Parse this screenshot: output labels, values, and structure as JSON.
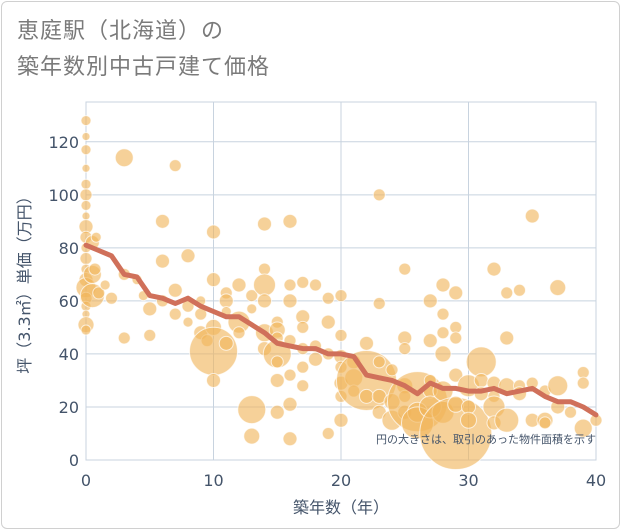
{
  "title": {
    "line1": "恵庭駅（北海道）の",
    "line2": "築年数別中古戸建て価格"
  },
  "chart_data": {
    "type": "scatter",
    "xlabel": "築年数（年）",
    "ylabel": "坪（3.3㎡）単価（万円）",
    "xlim": [
      0,
      40
    ],
    "ylim": [
      0,
      135
    ],
    "xticks": [
      0,
      10,
      20,
      30,
      40
    ],
    "yticks": [
      0,
      20,
      40,
      60,
      80,
      100,
      120
    ],
    "grid": true,
    "note": "円の大きさは、取引のあった物件面積を示す",
    "colors": {
      "bubble": "#f0b45a",
      "line": "#d0705a",
      "grid": "#c8d3df",
      "text": "#44546a"
    },
    "points": [
      {
        "x": 0,
        "y": 128,
        "s": 5
      },
      {
        "x": 0,
        "y": 122,
        "s": 4
      },
      {
        "x": 0,
        "y": 117,
        "s": 5
      },
      {
        "x": 0,
        "y": 110,
        "s": 4
      },
      {
        "x": 0,
        "y": 104,
        "s": 5
      },
      {
        "x": 0,
        "y": 100,
        "s": 6
      },
      {
        "x": 0,
        "y": 96,
        "s": 5
      },
      {
        "x": 0,
        "y": 92,
        "s": 4
      },
      {
        "x": 0,
        "y": 88,
        "s": 7
      },
      {
        "x": 0,
        "y": 84,
        "s": 6
      },
      {
        "x": 0,
        "y": 80,
        "s": 5
      },
      {
        "x": 0,
        "y": 76,
        "s": 6
      },
      {
        "x": 0,
        "y": 72,
        "s": 5
      },
      {
        "x": 0,
        "y": 68,
        "s": 7
      },
      {
        "x": 0,
        "y": 65,
        "s": 10
      },
      {
        "x": 0,
        "y": 61,
        "s": 6
      },
      {
        "x": 0,
        "y": 58,
        "s": 5
      },
      {
        "x": 0,
        "y": 55,
        "s": 4
      },
      {
        "x": 0,
        "y": 51,
        "s": 8
      },
      {
        "x": 0,
        "y": 49,
        "s": 5
      },
      {
        "x": 0.5,
        "y": 82,
        "s": 7
      },
      {
        "x": 0.5,
        "y": 70,
        "s": 9
      },
      {
        "x": 0.5,
        "y": 62,
        "s": 12
      },
      {
        "x": 0.7,
        "y": 72,
        "s": 6
      },
      {
        "x": 0.8,
        "y": 84,
        "s": 5
      },
      {
        "x": 1,
        "y": 63,
        "s": 6
      },
      {
        "x": 1.5,
        "y": 66,
        "s": 5
      },
      {
        "x": 2,
        "y": 61,
        "s": 6
      },
      {
        "x": 3,
        "y": 114,
        "s": 9
      },
      {
        "x": 3,
        "y": 70,
        "s": 6
      },
      {
        "x": 3,
        "y": 46,
        "s": 6
      },
      {
        "x": 4,
        "y": 68,
        "s": 5
      },
      {
        "x": 4.5,
        "y": 62,
        "s": 5
      },
      {
        "x": 5,
        "y": 57,
        "s": 7
      },
      {
        "x": 5,
        "y": 47,
        "s": 6
      },
      {
        "x": 6,
        "y": 90,
        "s": 7
      },
      {
        "x": 6,
        "y": 75,
        "s": 7
      },
      {
        "x": 6,
        "y": 60,
        "s": 6
      },
      {
        "x": 7,
        "y": 111,
        "s": 6
      },
      {
        "x": 7,
        "y": 64,
        "s": 7
      },
      {
        "x": 7,
        "y": 55,
        "s": 6
      },
      {
        "x": 8,
        "y": 77,
        "s": 7
      },
      {
        "x": 8,
        "y": 58,
        "s": 6
      },
      {
        "x": 8,
        "y": 52,
        "s": 5
      },
      {
        "x": 9,
        "y": 60,
        "s": 5
      },
      {
        "x": 9,
        "y": 55,
        "s": 6
      },
      {
        "x": 9,
        "y": 48,
        "s": 7
      },
      {
        "x": 9.5,
        "y": 45,
        "s": 6
      },
      {
        "x": 10,
        "y": 86,
        "s": 7
      },
      {
        "x": 10,
        "y": 68,
        "s": 7
      },
      {
        "x": 10,
        "y": 50,
        "s": 8
      },
      {
        "x": 10,
        "y": 41,
        "s": 24
      },
      {
        "x": 10,
        "y": 30,
        "s": 7
      },
      {
        "x": 11,
        "y": 63,
        "s": 6
      },
      {
        "x": 11,
        "y": 60,
        "s": 7
      },
      {
        "x": 11,
        "y": 56,
        "s": 5
      },
      {
        "x": 11,
        "y": 44,
        "s": 7
      },
      {
        "x": 12,
        "y": 66,
        "s": 7
      },
      {
        "x": 12,
        "y": 52,
        "s": 11
      },
      {
        "x": 12,
        "y": 48,
        "s": 6
      },
      {
        "x": 13,
        "y": 62,
        "s": 6
      },
      {
        "x": 13,
        "y": 57,
        "s": 5
      },
      {
        "x": 13,
        "y": 19,
        "s": 14
      },
      {
        "x": 13,
        "y": 9,
        "s": 8
      },
      {
        "x": 14,
        "y": 89,
        "s": 7
      },
      {
        "x": 14,
        "y": 72,
        "s": 6
      },
      {
        "x": 14,
        "y": 66,
        "s": 11
      },
      {
        "x": 14,
        "y": 60,
        "s": 7
      },
      {
        "x": 14,
        "y": 48,
        "s": 9
      },
      {
        "x": 14,
        "y": 42,
        "s": 7
      },
      {
        "x": 15,
        "y": 52,
        "s": 6
      },
      {
        "x": 15,
        "y": 49,
        "s": 8
      },
      {
        "x": 15,
        "y": 46,
        "s": 6
      },
      {
        "x": 15,
        "y": 40,
        "s": 14
      },
      {
        "x": 15,
        "y": 37,
        "s": 6
      },
      {
        "x": 15,
        "y": 30,
        "s": 7
      },
      {
        "x": 15,
        "y": 18,
        "s": 7
      },
      {
        "x": 16,
        "y": 90,
        "s": 7
      },
      {
        "x": 16,
        "y": 66,
        "s": 6
      },
      {
        "x": 16,
        "y": 60,
        "s": 7
      },
      {
        "x": 16,
        "y": 45,
        "s": 6
      },
      {
        "x": 16,
        "y": 32,
        "s": 6
      },
      {
        "x": 16,
        "y": 21,
        "s": 7
      },
      {
        "x": 16,
        "y": 8,
        "s": 7
      },
      {
        "x": 17,
        "y": 67,
        "s": 6
      },
      {
        "x": 17,
        "y": 54,
        "s": 7
      },
      {
        "x": 17,
        "y": 50,
        "s": 6
      },
      {
        "x": 17,
        "y": 42,
        "s": 6
      },
      {
        "x": 17,
        "y": 35,
        "s": 6
      },
      {
        "x": 17,
        "y": 28,
        "s": 6
      },
      {
        "x": 18,
        "y": 66,
        "s": 6
      },
      {
        "x": 18,
        "y": 43,
        "s": 6
      },
      {
        "x": 18,
        "y": 38,
        "s": 7
      },
      {
        "x": 19,
        "y": 61,
        "s": 6
      },
      {
        "x": 19,
        "y": 52,
        "s": 7
      },
      {
        "x": 19,
        "y": 40,
        "s": 6
      },
      {
        "x": 19,
        "y": 10,
        "s": 6
      },
      {
        "x": 20,
        "y": 62,
        "s": 6
      },
      {
        "x": 20,
        "y": 47,
        "s": 6
      },
      {
        "x": 20,
        "y": 39,
        "s": 7
      },
      {
        "x": 20,
        "y": 35,
        "s": 6
      },
      {
        "x": 20,
        "y": 29,
        "s": 7
      },
      {
        "x": 20,
        "y": 24,
        "s": 6
      },
      {
        "x": 20,
        "y": 15,
        "s": 7
      },
      {
        "x": 21,
        "y": 37,
        "s": 7
      },
      {
        "x": 21,
        "y": 31,
        "s": 9
      },
      {
        "x": 21,
        "y": 26,
        "s": 6
      },
      {
        "x": 22,
        "y": 44,
        "s": 7
      },
      {
        "x": 22,
        "y": 30,
        "s": 30
      },
      {
        "x": 22,
        "y": 24,
        "s": 7
      },
      {
        "x": 23,
        "y": 100,
        "s": 6
      },
      {
        "x": 23,
        "y": 59,
        "s": 6
      },
      {
        "x": 23,
        "y": 37,
        "s": 6
      },
      {
        "x": 23,
        "y": 24,
        "s": 7
      },
      {
        "x": 23,
        "y": 18,
        "s": 7
      },
      {
        "x": 24,
        "y": 34,
        "s": 6
      },
      {
        "x": 24,
        "y": 22,
        "s": 8
      },
      {
        "x": 24,
        "y": 15,
        "s": 10
      },
      {
        "x": 25,
        "y": 72,
        "s": 6
      },
      {
        "x": 25,
        "y": 46,
        "s": 7
      },
      {
        "x": 25,
        "y": 42,
        "s": 6
      },
      {
        "x": 25,
        "y": 28,
        "s": 8
      },
      {
        "x": 25,
        "y": 24,
        "s": 6
      },
      {
        "x": 25,
        "y": 18,
        "s": 7
      },
      {
        "x": 26,
        "y": 22,
        "s": 30
      },
      {
        "x": 26,
        "y": 18,
        "s": 10
      },
      {
        "x": 26,
        "y": 14,
        "s": 16
      },
      {
        "x": 27,
        "y": 60,
        "s": 7
      },
      {
        "x": 27,
        "y": 45,
        "s": 7
      },
      {
        "x": 27,
        "y": 30,
        "s": 6
      },
      {
        "x": 27,
        "y": 26,
        "s": 7
      },
      {
        "x": 27,
        "y": 20,
        "s": 11
      },
      {
        "x": 28,
        "y": 66,
        "s": 7
      },
      {
        "x": 28,
        "y": 55,
        "s": 6
      },
      {
        "x": 28,
        "y": 48,
        "s": 6
      },
      {
        "x": 28,
        "y": 40,
        "s": 8
      },
      {
        "x": 28,
        "y": 26,
        "s": 10
      },
      {
        "x": 28,
        "y": 18,
        "s": 11
      },
      {
        "x": 29,
        "y": 63,
        "s": 7
      },
      {
        "x": 29,
        "y": 50,
        "s": 6
      },
      {
        "x": 29,
        "y": 46,
        "s": 6
      },
      {
        "x": 29,
        "y": 32,
        "s": 7
      },
      {
        "x": 29,
        "y": 10,
        "s": 36
      },
      {
        "x": 29,
        "y": 21,
        "s": 8
      },
      {
        "x": 30,
        "y": 28,
        "s": 11
      },
      {
        "x": 30,
        "y": 20,
        "s": 7
      },
      {
        "x": 30,
        "y": 15,
        "s": 8
      },
      {
        "x": 31,
        "y": 37,
        "s": 15
      },
      {
        "x": 31,
        "y": 30,
        "s": 7
      },
      {
        "x": 31,
        "y": 25,
        "s": 7
      },
      {
        "x": 32,
        "y": 72,
        "s": 7
      },
      {
        "x": 32,
        "y": 29,
        "s": 7
      },
      {
        "x": 32,
        "y": 24,
        "s": 6
      },
      {
        "x": 32,
        "y": 20,
        "s": 11
      },
      {
        "x": 32,
        "y": 14,
        "s": 7
      },
      {
        "x": 33,
        "y": 63,
        "s": 6
      },
      {
        "x": 33,
        "y": 46,
        "s": 7
      },
      {
        "x": 33,
        "y": 28,
        "s": 8
      },
      {
        "x": 33,
        "y": 15,
        "s": 12
      },
      {
        "x": 34,
        "y": 64,
        "s": 6
      },
      {
        "x": 34,
        "y": 28,
        "s": 6
      },
      {
        "x": 34,
        "y": 25,
        "s": 7
      },
      {
        "x": 35,
        "y": 92,
        "s": 7
      },
      {
        "x": 35,
        "y": 29,
        "s": 6
      },
      {
        "x": 35,
        "y": 15,
        "s": 7
      },
      {
        "x": 36,
        "y": 26,
        "s": 6
      },
      {
        "x": 36,
        "y": 15,
        "s": 8
      },
      {
        "x": 36,
        "y": 14,
        "s": 6
      },
      {
        "x": 37,
        "y": 65,
        "s": 8
      },
      {
        "x": 37,
        "y": 28,
        "s": 10
      },
      {
        "x": 37,
        "y": 20,
        "s": 7
      },
      {
        "x": 38,
        "y": 18,
        "s": 6
      },
      {
        "x": 39,
        "y": 33,
        "s": 6
      },
      {
        "x": 39,
        "y": 29,
        "s": 6
      },
      {
        "x": 39,
        "y": 12,
        "s": 9
      },
      {
        "x": 40,
        "y": 15,
        "s": 6
      }
    ],
    "trend": {
      "x": [
        0,
        1,
        2,
        3,
        4,
        5,
        6,
        7,
        8,
        9,
        10,
        11,
        12,
        13,
        14,
        15,
        16,
        17,
        18,
        19,
        20,
        21,
        22,
        23,
        24,
        25,
        26,
        27,
        28,
        29,
        30,
        31,
        32,
        33,
        34,
        35,
        36,
        37,
        38,
        39,
        40
      ],
      "y": [
        81,
        79,
        77,
        70,
        69,
        62,
        61,
        59,
        61,
        58,
        56,
        54,
        54,
        51,
        48,
        44,
        43,
        42,
        42,
        40,
        40,
        39,
        32,
        31,
        30,
        28,
        25,
        29,
        27,
        27,
        26,
        26,
        27,
        25,
        26,
        27,
        24,
        22,
        22,
        20,
        17
      ]
    }
  }
}
